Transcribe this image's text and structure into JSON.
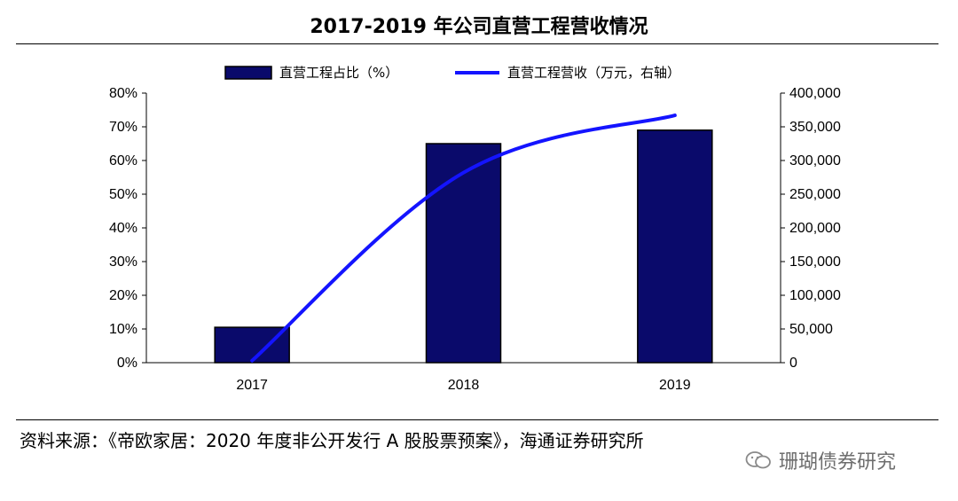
{
  "header": {
    "title": "2017-2019 年公司直营工程营收情况"
  },
  "footer": {
    "source": "资料来源：《帝欧家居：2020 年度非公开发行 A 股股票预案》，海通证券研究所",
    "watermark": "珊瑚债券研究"
  },
  "chart_data": {
    "type": "bar",
    "categories": [
      "2017",
      "2018",
      "2019"
    ],
    "series": [
      {
        "name": "直营工程占比（%）",
        "kind": "bar",
        "axis": "left",
        "values": [
          10.5,
          65,
          69
        ],
        "color": "#0a0a6b"
      },
      {
        "name": "直营工程营收（万元，右轴）",
        "kind": "line",
        "axis": "right",
        "values": [
          3000,
          282000,
          367000
        ],
        "color": "#1414ff"
      }
    ],
    "left_axis": {
      "ylim": [
        0,
        80
      ],
      "ticks": [
        "0%",
        "10%",
        "20%",
        "30%",
        "40%",
        "50%",
        "60%",
        "70%",
        "80%"
      ]
    },
    "right_axis": {
      "ylim": [
        0,
        400000
      ],
      "ticks": [
        "0",
        "50,000",
        "100,000",
        "150,000",
        "200,000",
        "250,000",
        "300,000",
        "350,000",
        "400,000"
      ]
    },
    "grid": false,
    "legend": "top"
  }
}
